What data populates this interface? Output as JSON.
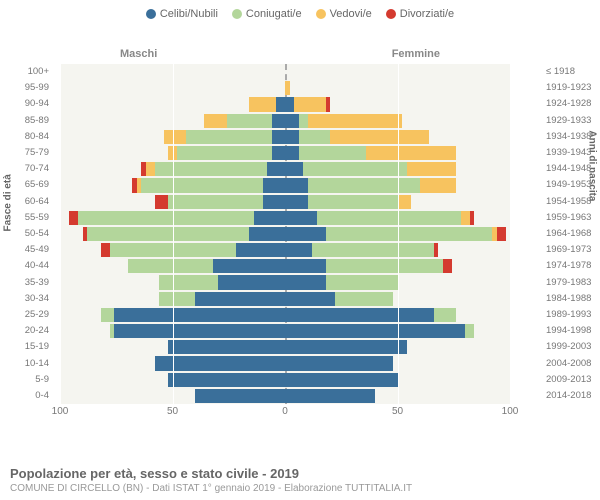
{
  "legend": [
    {
      "label": "Celibi/Nubili",
      "color": "#3a6f9a"
    },
    {
      "label": "Coniugati/e",
      "color": "#b3d69b"
    },
    {
      "label": "Vedovi/e",
      "color": "#f7c35f"
    },
    {
      "label": "Divorziati/e",
      "color": "#d43a2f"
    }
  ],
  "side_labels": {
    "male": "Maschi",
    "female": "Femmine"
  },
  "axis_titles": {
    "left": "Fasce di età",
    "right": "Anni di nascita"
  },
  "xaxis": {
    "max": 100,
    "ticks": [
      100,
      50,
      0,
      50,
      100
    ]
  },
  "colors": {
    "celibi": "#3a6f9a",
    "coniugati": "#b3d69b",
    "vedovi": "#f7c35f",
    "divorziati": "#d43a2f",
    "plot_bg": "#f5f5f0",
    "grid": "#ffffff"
  },
  "rows": [
    {
      "age": "100+",
      "year": "≤ 1918",
      "m": [
        0,
        0,
        0,
        0
      ],
      "f": [
        0,
        0,
        0,
        0
      ]
    },
    {
      "age": "95-99",
      "year": "1919-1923",
      "m": [
        0,
        0,
        0,
        0
      ],
      "f": [
        0,
        0,
        2,
        0
      ]
    },
    {
      "age": "90-94",
      "year": "1924-1928",
      "m": [
        4,
        0,
        12,
        0
      ],
      "f": [
        4,
        0,
        14,
        2
      ]
    },
    {
      "age": "85-89",
      "year": "1929-1933",
      "m": [
        6,
        20,
        10,
        0
      ],
      "f": [
        6,
        4,
        42,
        0
      ]
    },
    {
      "age": "80-84",
      "year": "1934-1938",
      "m": [
        6,
        38,
        10,
        0
      ],
      "f": [
        6,
        14,
        44,
        0
      ]
    },
    {
      "age": "75-79",
      "year": "1939-1943",
      "m": [
        6,
        42,
        4,
        0
      ],
      "f": [
        6,
        30,
        40,
        0
      ]
    },
    {
      "age": "70-74",
      "year": "1944-1948",
      "m": [
        8,
        50,
        4,
        2
      ],
      "f": [
        8,
        46,
        22,
        0
      ]
    },
    {
      "age": "65-69",
      "year": "1949-1953",
      "m": [
        10,
        54,
        2,
        2
      ],
      "f": [
        10,
        50,
        16,
        0
      ]
    },
    {
      "age": "60-64",
      "year": "1954-1958",
      "m": [
        10,
        42,
        0,
        6
      ],
      "f": [
        10,
        40,
        6,
        0
      ]
    },
    {
      "age": "55-59",
      "year": "1959-1963",
      "m": [
        14,
        78,
        0,
        4
      ],
      "f": [
        14,
        64,
        4,
        2
      ]
    },
    {
      "age": "50-54",
      "year": "1964-1968",
      "m": [
        16,
        72,
        0,
        2
      ],
      "f": [
        18,
        74,
        2,
        4
      ]
    },
    {
      "age": "45-49",
      "year": "1969-1973",
      "m": [
        22,
        56,
        0,
        4
      ],
      "f": [
        12,
        54,
        0,
        2
      ]
    },
    {
      "age": "40-44",
      "year": "1974-1978",
      "m": [
        32,
        38,
        0,
        0
      ],
      "f": [
        18,
        52,
        0,
        4
      ]
    },
    {
      "age": "35-39",
      "year": "1979-1983",
      "m": [
        30,
        26,
        0,
        0
      ],
      "f": [
        18,
        32,
        0,
        0
      ]
    },
    {
      "age": "30-34",
      "year": "1984-1988",
      "m": [
        40,
        16,
        0,
        0
      ],
      "f": [
        22,
        26,
        0,
        0
      ]
    },
    {
      "age": "25-29",
      "year": "1989-1993",
      "m": [
        76,
        6,
        0,
        0
      ],
      "f": [
        66,
        10,
        0,
        0
      ]
    },
    {
      "age": "20-24",
      "year": "1994-1998",
      "m": [
        76,
        2,
        0,
        0
      ],
      "f": [
        80,
        4,
        0,
        0
      ]
    },
    {
      "age": "15-19",
      "year": "1999-2003",
      "m": [
        52,
        0,
        0,
        0
      ],
      "f": [
        54,
        0,
        0,
        0
      ]
    },
    {
      "age": "10-14",
      "year": "2004-2008",
      "m": [
        58,
        0,
        0,
        0
      ],
      "f": [
        48,
        0,
        0,
        0
      ]
    },
    {
      "age": "5-9",
      "year": "2009-2013",
      "m": [
        52,
        0,
        0,
        0
      ],
      "f": [
        50,
        0,
        0,
        0
      ]
    },
    {
      "age": "0-4",
      "year": "2014-2018",
      "m": [
        40,
        0,
        0,
        0
      ],
      "f": [
        40,
        0,
        0,
        0
      ]
    }
  ],
  "footer": {
    "title": "Popolazione per età, sesso e stato civile - 2019",
    "subtitle": "COMUNE DI CIRCELLO (BN) - Dati ISTAT 1° gennaio 2019 - Elaborazione TUTTITALIA.IT"
  }
}
